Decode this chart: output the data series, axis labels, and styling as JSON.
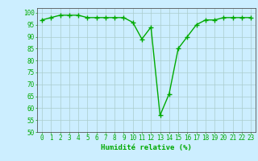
{
  "x": [
    0,
    1,
    2,
    3,
    4,
    5,
    6,
    7,
    8,
    9,
    10,
    11,
    12,
    13,
    14,
    15,
    16,
    17,
    18,
    19,
    20,
    21,
    22,
    23
  ],
  "y": [
    97,
    98,
    99,
    99,
    99,
    98,
    98,
    98,
    98,
    98,
    96,
    89,
    94,
    57,
    66,
    85,
    90,
    95,
    97,
    97,
    98,
    98,
    98,
    98
  ],
  "line_color": "#00aa00",
  "marker_color": "#00aa00",
  "bg_color": "#cceeff",
  "grid_color": "#aacccc",
  "xlabel": "Humidité relative (%)",
  "xlabel_color": "#00aa00",
  "ylim": [
    50,
    102
  ],
  "xlim": [
    -0.5,
    23.5
  ],
  "yticks": [
    50,
    55,
    60,
    65,
    70,
    75,
    80,
    85,
    90,
    95,
    100
  ],
  "xtick_labels": [
    "0",
    "1",
    "2",
    "3",
    "4",
    "5",
    "6",
    "7",
    "8",
    "9",
    "10",
    "11",
    "12",
    "13",
    "14",
    "15",
    "16",
    "17",
    "18",
    "19",
    "20",
    "21",
    "22",
    "23"
  ],
  "axis_color": "#555555",
  "tick_label_color": "#00aa00",
  "tick_label_fontsize": 5.5,
  "xlabel_fontsize": 6.5,
  "linewidth": 1.0,
  "markersize": 4
}
